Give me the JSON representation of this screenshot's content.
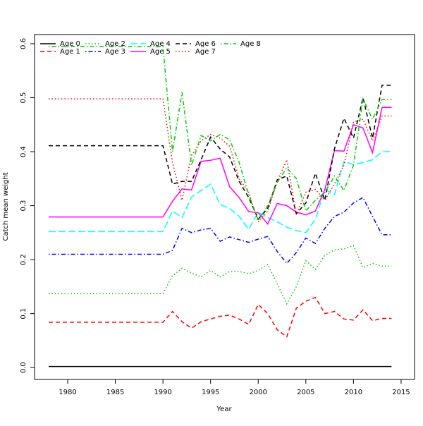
{
  "chart_data": {
    "type": "line",
    "x_label": "Year",
    "y_label": "Catch mean weight",
    "x": [
      1978,
      1979,
      1980,
      1981,
      1982,
      1983,
      1984,
      1985,
      1986,
      1987,
      1988,
      1989,
      1990,
      1991,
      1992,
      1993,
      1994,
      1995,
      1996,
      1997,
      1998,
      1999,
      2000,
      2001,
      2002,
      2003,
      2004,
      2005,
      2006,
      2007,
      2008,
      2009,
      2010,
      2011,
      2012,
      2013,
      2014
    ],
    "xlim": [
      1976.52,
      2016.41
    ],
    "xticks": [
      1980,
      1985,
      1990,
      1995,
      2000,
      2005,
      2010,
      2015
    ],
    "ylim": [
      -0.022,
      0.617
    ],
    "yticks": [
      {
        "value": 0,
        "label": "0.0"
      },
      0.1,
      0.2,
      0.3,
      0.4,
      0.5,
      0.6
    ],
    "legend_columns": 5,
    "series": [
      {
        "name": "Age 0",
        "color": "#000000",
        "dash": "solid",
        "values": [
          0.002,
          0.002,
          0.002,
          0.002,
          0.002,
          0.002,
          0.002,
          0.002,
          0.002,
          0.002,
          0.002,
          0.002,
          0.002,
          0.002,
          0.002,
          0.002,
          0.002,
          0.002,
          0.002,
          0.002,
          0.002,
          0.002,
          0.002,
          0.002,
          0.002,
          0.002,
          0.002,
          0.002,
          0.002,
          0.002,
          0.002,
          0.002,
          0.002,
          0.002,
          0.002,
          0.002,
          0.002
        ]
      },
      {
        "name": "Age 1",
        "color": "#ff0000",
        "dash": "dashed",
        "values": [
          0.084,
          0.084,
          0.084,
          0.084,
          0.084,
          0.084,
          0.084,
          0.084,
          0.084,
          0.084,
          0.084,
          0.084,
          0.084,
          0.104,
          0.085,
          0.073,
          0.085,
          0.09,
          0.095,
          0.097,
          0.09,
          0.08,
          0.117,
          0.1,
          0.07,
          0.057,
          0.11,
          0.123,
          0.13,
          0.1,
          0.104,
          0.09,
          0.088,
          0.107,
          0.087,
          0.091,
          0.091
        ]
      },
      {
        "name": "Age 2",
        "color": "#00cd00",
        "dash": "dotted",
        "values": [
          0.137,
          0.137,
          0.137,
          0.137,
          0.137,
          0.137,
          0.137,
          0.137,
          0.137,
          0.137,
          0.137,
          0.137,
          0.137,
          0.17,
          0.184,
          0.175,
          0.168,
          0.18,
          0.168,
          0.178,
          0.178,
          0.174,
          0.18,
          0.191,
          0.155,
          0.118,
          0.15,
          0.198,
          0.182,
          0.208,
          0.218,
          0.22,
          0.226,
          0.185,
          0.193,
          0.188,
          0.188
        ]
      },
      {
        "name": "Age 3",
        "color": "#0000ff",
        "dash": "dotdash",
        "values": [
          0.21,
          0.21,
          0.21,
          0.21,
          0.21,
          0.21,
          0.21,
          0.21,
          0.21,
          0.21,
          0.21,
          0.21,
          0.21,
          0.217,
          0.258,
          0.25,
          0.255,
          0.258,
          0.234,
          0.242,
          0.237,
          0.232,
          0.238,
          0.243,
          0.215,
          0.193,
          0.213,
          0.24,
          0.23,
          0.258,
          0.28,
          0.288,
          0.305,
          0.315,
          0.28,
          0.246,
          0.246
        ]
      },
      {
        "name": "Age 4",
        "color": "#00ffff",
        "dash": "longdash",
        "values": [
          0.252,
          0.252,
          0.252,
          0.252,
          0.252,
          0.252,
          0.252,
          0.252,
          0.252,
          0.252,
          0.252,
          0.252,
          0.252,
          0.29,
          0.278,
          0.316,
          0.328,
          0.34,
          0.302,
          0.295,
          0.28,
          0.256,
          0.288,
          0.278,
          0.27,
          0.26,
          0.254,
          0.25,
          0.275,
          0.33,
          0.32,
          0.382,
          0.376,
          0.38,
          0.385,
          0.4,
          0.4
        ]
      },
      {
        "name": "Age 5",
        "color": "#ff00ff",
        "dash": "solid",
        "values": [
          0.279,
          0.279,
          0.279,
          0.279,
          0.279,
          0.279,
          0.279,
          0.279,
          0.279,
          0.279,
          0.279,
          0.279,
          0.279,
          0.308,
          0.331,
          0.329,
          0.382,
          0.384,
          0.388,
          0.335,
          0.315,
          0.289,
          0.287,
          0.266,
          0.304,
          0.3,
          0.288,
          0.283,
          0.29,
          0.33,
          0.402,
          0.401,
          0.45,
          0.444,
          0.398,
          0.482,
          0.482
        ]
      },
      {
        "name": "Age 6",
        "color": "#000000",
        "dash": "dashed",
        "values": [
          0.411,
          0.411,
          0.411,
          0.411,
          0.411,
          0.411,
          0.411,
          0.411,
          0.411,
          0.411,
          0.411,
          0.411,
          0.411,
          0.34,
          0.345,
          0.345,
          0.385,
          0.427,
          0.405,
          0.39,
          0.345,
          0.315,
          0.275,
          0.295,
          0.348,
          0.355,
          0.285,
          0.305,
          0.36,
          0.31,
          0.405,
          0.462,
          0.425,
          0.5,
          0.425,
          0.523,
          0.523
        ]
      },
      {
        "name": "Age 7",
        "color": "#ff0000",
        "dash": "dotted",
        "values": [
          0.498,
          0.498,
          0.498,
          0.498,
          0.498,
          0.498,
          0.498,
          0.498,
          0.498,
          0.498,
          0.498,
          0.498,
          0.498,
          0.38,
          0.31,
          0.393,
          0.42,
          0.432,
          0.425,
          0.41,
          0.35,
          0.325,
          0.27,
          0.29,
          0.345,
          0.385,
          0.283,
          0.325,
          0.33,
          0.31,
          0.34,
          0.375,
          0.455,
          0.46,
          0.42,
          0.466,
          0.466
        ]
      },
      {
        "name": "Age 8",
        "color": "#00cd00",
        "dash": "dotdash",
        "values": [
          0.595,
          0.595,
          0.595,
          0.595,
          0.595,
          0.595,
          0.595,
          0.595,
          0.595,
          0.595,
          0.595,
          0.595,
          0.595,
          0.4,
          0.51,
          0.375,
          0.43,
          0.42,
          0.432,
          0.422,
          0.38,
          0.32,
          0.273,
          0.3,
          0.343,
          0.37,
          0.35,
          0.29,
          0.31,
          0.325,
          0.355,
          0.328,
          0.375,
          0.498,
          0.46,
          0.497,
          0.497
        ]
      }
    ]
  }
}
